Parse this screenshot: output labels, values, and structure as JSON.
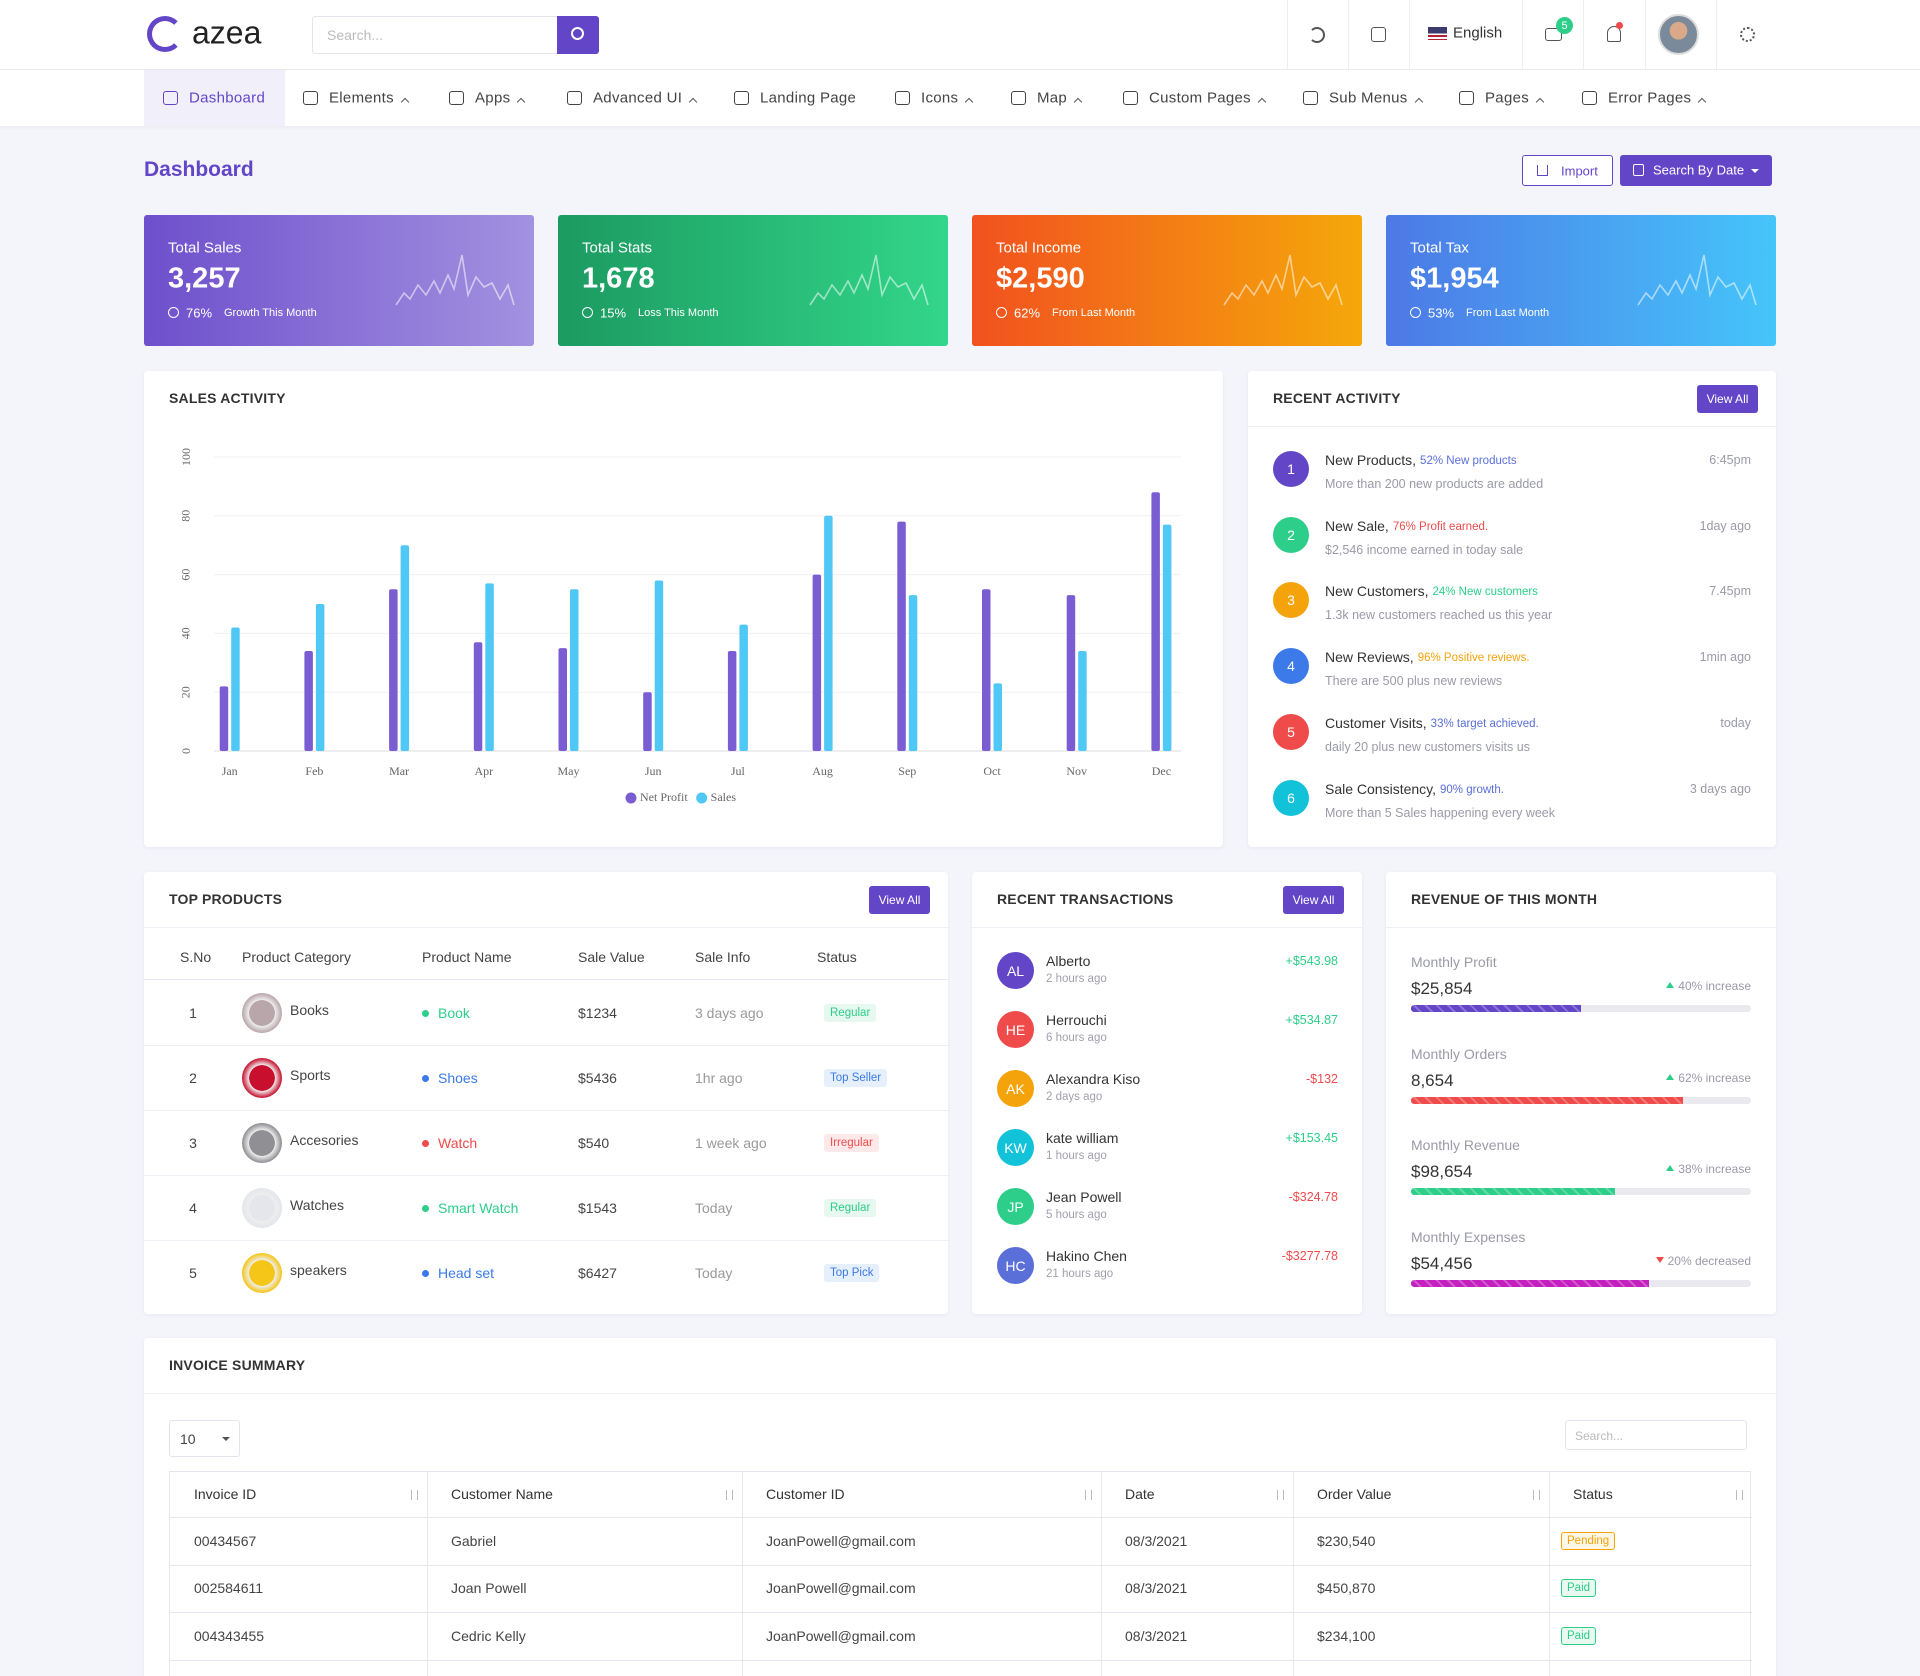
{
  "header": {
    "logo": "azea",
    "search_placeholder": "Search...",
    "language": "English",
    "mail_badge": "5"
  },
  "nav": [
    "Dashboard",
    "Elements",
    "Apps",
    "Advanced UI",
    "Landing Page",
    "Icons",
    "Map",
    "Custom Pages",
    "Sub Menus",
    "Pages",
    "Error Pages"
  ],
  "page": {
    "title": "Dashboard",
    "buttons": [
      "Import",
      "Search By Date"
    ]
  },
  "stats": [
    {
      "title": "Total Sales",
      "value": "3,257",
      "change": "76%",
      "note": "Growth This Month"
    },
    {
      "title": "Total Stats",
      "value": "1,678",
      "change": "15%",
      "note": "Loss This Month"
    },
    {
      "title": "Total Income",
      "value": "$2,590",
      "change": "62%",
      "note": "From Last Month"
    },
    {
      "title": "Total Tax",
      "value": "$1,954",
      "change": "53%",
      "note": "From Last Month"
    }
  ],
  "chart_data": {
    "type": "bar",
    "title": "SALES ACTIVITY",
    "categories": [
      "Jan",
      "Feb",
      "Mar",
      "Apr",
      "May",
      "Jun",
      "Jul",
      "Aug",
      "Sep",
      "Oct",
      "Nov",
      "Dec"
    ],
    "series": [
      {
        "name": "Net Profit",
        "color": "#7b5dd3",
        "values": [
          22,
          34,
          55,
          37,
          35,
          20,
          34,
          60,
          78,
          55,
          53,
          88
        ]
      },
      {
        "name": "Sales",
        "color": "#4fc8f6",
        "values": [
          42,
          50,
          70,
          57,
          55,
          58,
          43,
          80,
          53,
          23,
          34,
          77
        ]
      }
    ],
    "ylim": [
      0,
      100
    ],
    "yticks": [
      0,
      20,
      40,
      60,
      80,
      100
    ],
    "grid": true,
    "legend": "bottom"
  },
  "recent_activity": {
    "title": "RECENT ACTIVITY",
    "button": "View All",
    "items": [
      {
        "n": "1",
        "title": "New Products,",
        "highlight": "52% New products",
        "desc": "More than 200 new products are added",
        "time": "6:45pm"
      },
      {
        "n": "2",
        "title": "New Sale,",
        "highlight": "76% Profit earned.",
        "desc": "$2,546 income earned in today sale",
        "time": "1day ago"
      },
      {
        "n": "3",
        "title": "New Customers,",
        "highlight": "24% New customers",
        "desc": "1.3k new customers reached us this year",
        "time": "7.45pm"
      },
      {
        "n": "4",
        "title": "New Reviews,",
        "highlight": "96% Positive reviews.",
        "desc": "There are 500 plus new reviews",
        "time": "1min ago"
      },
      {
        "n": "5",
        "title": "Customer Visits,",
        "highlight": "33% target achieved.",
        "desc": "daily 20 plus new customers visits us",
        "time": "today"
      },
      {
        "n": "6",
        "title": "Sale Consistency,",
        "highlight": "90% growth.",
        "desc": "More than 5 Sales happening every week",
        "time": "3 days ago"
      }
    ]
  },
  "top_products": {
    "title": "TOP PRODUCTS",
    "button": "View All",
    "columns": [
      "S.No",
      "Product Category",
      "Product Name",
      "Sale Value",
      "Sale Info",
      "Status"
    ],
    "rows": [
      [
        "1",
        "Books",
        "Book",
        "$1234",
        "3 days ago",
        "Regular"
      ],
      [
        "2",
        "Sports",
        "Shoes",
        "$5436",
        "1hr ago",
        "Top Seller"
      ],
      [
        "3",
        "Accesories",
        "Watch",
        "$540",
        "1 week ago",
        "Irregular"
      ],
      [
        "4",
        "Watches",
        "Smart Watch",
        "$1543",
        "Today",
        "Regular"
      ],
      [
        "5",
        "speakers",
        "Head set",
        "$6427",
        "Today",
        "Top Pick"
      ]
    ]
  },
  "recent_transactions": {
    "title": "RECENT TRANSACTIONS",
    "button": "View All",
    "items": [
      {
        "initials": "AL",
        "name": "Alberto",
        "time": "2 hours ago",
        "amount": "+$543.98"
      },
      {
        "initials": "HE",
        "name": "Herrouchi",
        "time": "6 hours ago",
        "amount": "+$534.87"
      },
      {
        "initials": "AK",
        "name": "Alexandra Kiso",
        "time": "2 days ago",
        "amount": "-$132"
      },
      {
        "initials": "KW",
        "name": "kate william",
        "time": "1 hours ago",
        "amount": "+$153.45"
      },
      {
        "initials": "JP",
        "name": "Jean Powell",
        "time": "5 hours ago",
        "amount": "-$324.78"
      },
      {
        "initials": "HC",
        "name": "Hakino Chen",
        "time": "21 hours ago",
        "amount": "-$3277.78"
      }
    ]
  },
  "revenue": {
    "title": "REVENUE OF THIS MONTH",
    "items": [
      {
        "label": "Monthly Profit",
        "value": "$25,854",
        "change": "40% increase",
        "progress": 50
      },
      {
        "label": "Monthly Orders",
        "value": "8,654",
        "change": "62% increase",
        "progress": 80
      },
      {
        "label": "Monthly Revenue",
        "value": "$98,654",
        "change": "38% increase",
        "progress": 60
      },
      {
        "label": "Monthly Expenses",
        "value": "$54,456",
        "change": "20% decreased",
        "progress": 70
      }
    ]
  },
  "invoice": {
    "title": "INVOICE SUMMARY",
    "page_size": "10",
    "search_placeholder": "Search...",
    "columns": [
      "Invoice ID",
      "Customer Name",
      "Customer ID",
      "Date",
      "Order Value",
      "Status"
    ],
    "rows": [
      [
        "00434567",
        "Gabriel",
        "JoanPowell@gmail.com",
        "08/3/2021",
        "$230,540",
        "Pending"
      ],
      [
        "002584611",
        "Joan Powell",
        "JoanPowell@gmail.com",
        "08/3/2021",
        "$450,870",
        "Paid"
      ],
      [
        "004343455",
        "Cedric Kelly",
        "JoanPowell@gmail.com",
        "08/3/2021",
        "$234,100",
        "Paid"
      ]
    ]
  }
}
